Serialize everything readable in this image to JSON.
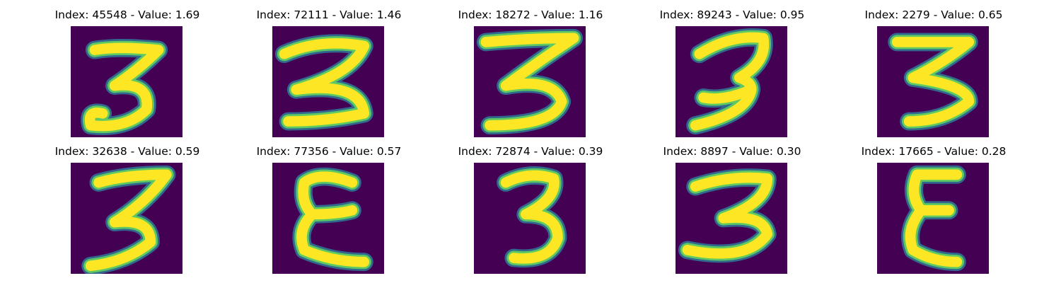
{
  "colors": {
    "background": "#440154",
    "mid_dark": "#31688e",
    "mid": "#21918c",
    "mid_light": "#5ec962",
    "foreground": "#fde725"
  },
  "panels": [
    {
      "index": "45548",
      "value": "1.69",
      "title": "Index: 45548 - Value: 1.69"
    },
    {
      "index": "72111",
      "value": "1.46",
      "title": "Index: 72111 - Value: 1.46"
    },
    {
      "index": "18272",
      "value": "1.16",
      "title": "Index: 18272 - Value: 1.16"
    },
    {
      "index": "89243",
      "value": "0.95",
      "title": "Index: 89243 - Value: 0.95"
    },
    {
      "index": "2279",
      "value": "0.65",
      "title": "Index: 2279 - Value: 0.65"
    },
    {
      "index": "32638",
      "value": "0.59",
      "title": "Index: 32638 - Value: 0.59"
    },
    {
      "index": "77356",
      "value": "0.57",
      "title": "Index: 77356 - Value: 0.57"
    },
    {
      "index": "72874",
      "value": "0.39",
      "title": "Index: 72874 - Value: 0.39"
    },
    {
      "index": "8897",
      "value": "0.30",
      "title": "Index: 8897 - Value: 0.30"
    },
    {
      "index": "17665",
      "value": "0.28",
      "title": "Index: 17665 - Value: 0.28"
    }
  ]
}
